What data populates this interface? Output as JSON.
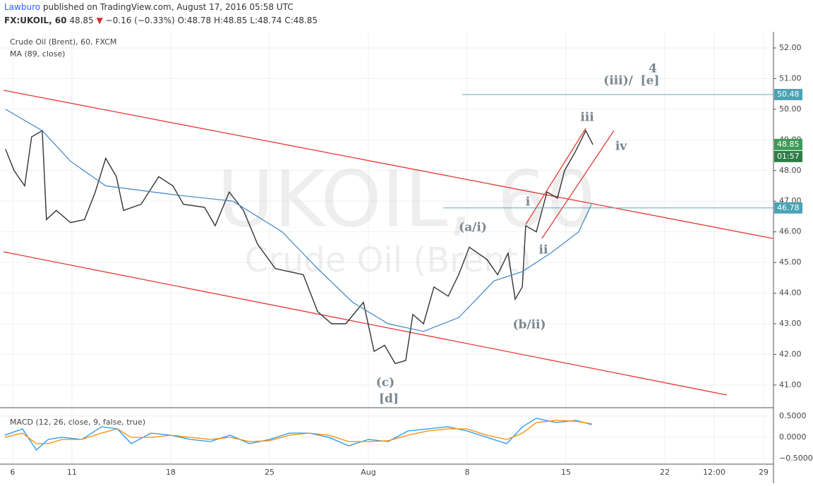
{
  "header": {
    "publisher": "Lawburo",
    "published": "published on TradingView.com, August 17, 2016 05:58 UTC",
    "symbol": "FX:UKOIL, 60",
    "last": "48.85",
    "arrow": "▼",
    "change": "−0.16 (−0.33%)",
    "ohlc": [
      "O:48.78",
      "H:48.85",
      "L:48.74",
      "C:48.85"
    ]
  },
  "watermark": {
    "symbol": "UKOIL, 60",
    "name": "Crude Oil (Brent)"
  },
  "chart_data": {
    "type": "line",
    "grid": true,
    "xlim": [
      -0.64,
      38.5
    ],
    "ylim": [
      40.26,
      52.53
    ],
    "xticks": [
      {
        "value": 0,
        "label": "6"
      },
      {
        "value": 3,
        "label": "11"
      },
      {
        "value": 8,
        "label": "18"
      },
      {
        "value": 13,
        "label": "25"
      },
      {
        "value": 18,
        "label": "Aug"
      },
      {
        "value": 23,
        "label": "8"
      },
      {
        "value": 28,
        "label": "15"
      },
      {
        "value": 33,
        "label": "22"
      },
      {
        "value": 35.5,
        "label": "12:00"
      },
      {
        "value": 38,
        "label": "29"
      }
    ],
    "yticks": [
      {
        "value": 41,
        "label": "41.00"
      },
      {
        "value": 42,
        "label": "42.00"
      },
      {
        "value": 43,
        "label": "43.00"
      },
      {
        "value": 44,
        "label": "44.00"
      },
      {
        "value": 45,
        "label": "45.00"
      },
      {
        "value": 46,
        "label": "46.00"
      },
      {
        "value": 47,
        "label": "47.00"
      },
      {
        "value": 48,
        "label": "48.00"
      },
      {
        "value": 49,
        "label": "49.00"
      },
      {
        "value": 50,
        "label": "50.00"
      },
      {
        "value": 51,
        "label": "51.00"
      },
      {
        "value": 52,
        "label": "52.00"
      }
    ],
    "series": [
      {
        "name": "Crude Oil (Brent), 60, FXCM",
        "color": "#333333",
        "x": [
          -0.36,
          0.07,
          0.61,
          0.96,
          1.5,
          1.71,
          2.21,
          2.93,
          3.64,
          4.18,
          4.71,
          5.25,
          5.61,
          6.5,
          7.39,
          8.11,
          8.64,
          9.71,
          10.25,
          10.96,
          11.68,
          12.39,
          13.29,
          14,
          14.71,
          15.43,
          16.14,
          16.86,
          17.75,
          18.29,
          18.82,
          19.36,
          19.89,
          20.25,
          20.79,
          21.32,
          22.04,
          22.57,
          23.11,
          24,
          24.54,
          25.07,
          25.43,
          25.79,
          25.96,
          26.5,
          27.04,
          27.57,
          27.93,
          28.46,
          29,
          29.36
        ],
        "values": [
          48.7,
          48.0,
          47.5,
          49.1,
          49.3,
          46.4,
          46.7,
          46.3,
          46.4,
          47.3,
          48.4,
          47.8,
          46.7,
          46.9,
          47.8,
          47.5,
          46.9,
          46.8,
          46.2,
          47.3,
          46.7,
          45.6,
          44.8,
          44.7,
          44.6,
          43.4,
          43.0,
          43.0,
          43.7,
          42.1,
          42.3,
          41.7,
          41.8,
          43.3,
          43.0,
          44.2,
          43.9,
          44.6,
          45.5,
          45.1,
          44.6,
          45.3,
          43.8,
          44.2,
          46.2,
          46.0,
          47.3,
          47.1,
          48.0,
          48.6,
          49.3,
          48.85
        ]
      },
      {
        "name": "MA (89, close)",
        "color": "#3d85c6",
        "x": [
          -0.36,
          1.5,
          2.93,
          4.71,
          8.29,
          11.14,
          13.64,
          15.43,
          17.21,
          19,
          20.79,
          22.57,
          24.36,
          25.79,
          27.21,
          28.64,
          29.29
        ],
        "values": [
          50.0,
          49.3,
          48.3,
          47.5,
          47.2,
          47.0,
          46.0,
          44.8,
          43.7,
          43.0,
          42.75,
          43.2,
          44.4,
          44.7,
          45.3,
          46.0,
          46.9
        ]
      }
    ],
    "levels": [
      50.48,
      46.78
    ],
    "last": 48.85,
    "countdown": "01:57",
    "annotations": [
      "iii",
      "iv",
      "i",
      "ii",
      "(a/i)",
      "(b/ii)",
      "(c)",
      "[d]",
      "(iii)/",
      "4",
      "[e]"
    ],
    "macd": {
      "title": "MACD (12, 26, close, 9, false, true)",
      "ylim": [
        -0.617,
        0.667
      ],
      "yticks": [
        {
          "value": 0.5,
          "label": "0.5000"
        },
        {
          "value": 0,
          "label": "0.0000"
        },
        {
          "value": -0.5,
          "label": "−0.5000"
        }
      ],
      "macd_color": "#2196f3",
      "signal_color": "#ff8a00",
      "x": [
        -0.4,
        0.5,
        1.2,
        1.8,
        2.5,
        3.5,
        4.5,
        5.3,
        6,
        7,
        8,
        9,
        10,
        11,
        12,
        13,
        14,
        15,
        16,
        17,
        18,
        19,
        20,
        21,
        22,
        23,
        24,
        25,
        25.8,
        26.5,
        27.5,
        28.5,
        29.3
      ],
      "macd_values": [
        0.05,
        0.2,
        -0.3,
        -0.05,
        0.0,
        -0.05,
        0.25,
        0.2,
        -0.15,
        0.1,
        0.05,
        -0.05,
        -0.1,
        0.05,
        -0.15,
        -0.05,
        0.1,
        0.1,
        0.0,
        -0.2,
        -0.05,
        -0.1,
        0.15,
        0.2,
        0.25,
        0.15,
        0.0,
        -0.15,
        0.25,
        0.45,
        0.35,
        0.4,
        0.3
      ],
      "signal_values": [
        0.0,
        0.1,
        -0.15,
        -0.15,
        -0.05,
        -0.05,
        0.1,
        0.2,
        0.0,
        0.0,
        0.05,
        0.0,
        -0.05,
        0.0,
        -0.1,
        -0.08,
        0.05,
        0.1,
        0.05,
        -0.1,
        -0.1,
        -0.08,
        0.05,
        0.15,
        0.2,
        0.2,
        0.05,
        -0.05,
        0.1,
        0.35,
        0.4,
        0.38,
        0.32
      ]
    }
  }
}
